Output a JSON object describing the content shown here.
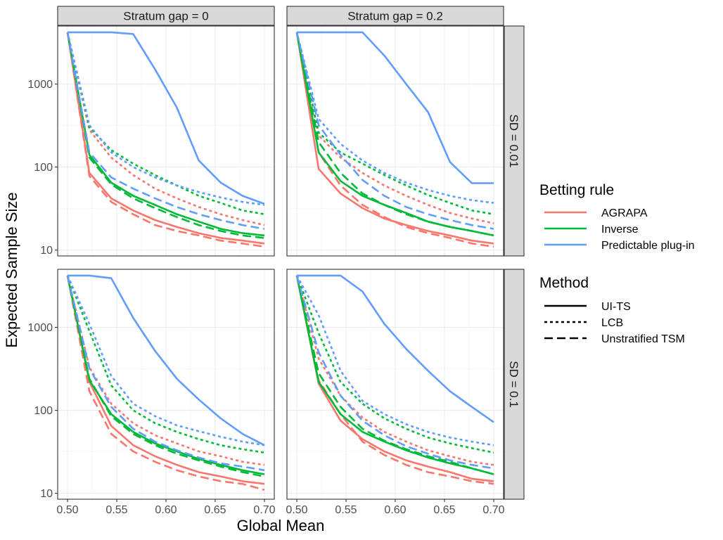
{
  "chart_data": {
    "type": "line",
    "xlabel": "Global Mean",
    "ylabel": "Expected Sample Size",
    "y_scale": "log10",
    "xlim": [
      0.49,
      0.71
    ],
    "ylim": [
      8.5,
      5000
    ],
    "x_ticks": [
      0.5,
      0.55,
      0.6,
      0.65,
      0.7
    ],
    "x_tick_labels": [
      "0.50",
      "0.55",
      "0.60",
      "0.65",
      "0.70"
    ],
    "y_ticks": [
      10,
      100,
      1000
    ],
    "y_tick_labels": [
      "10",
      "100",
      "1000"
    ],
    "col_facet_labels": [
      "Stratum gap = 0",
      "Stratum gap = 0.2"
    ],
    "row_facet_labels": [
      "SD = 0.01",
      "SD = 0.1"
    ],
    "legend": {
      "color_title": "Betting rule",
      "color_entries": [
        {
          "label": "AGRAPA",
          "color": "#F8766D"
        },
        {
          "label": "Inverse",
          "color": "#00BA38"
        },
        {
          "label": "Predictable plug-in",
          "color": "#619CFF"
        }
      ],
      "linetype_title": "Method",
      "linetype_entries": [
        {
          "label": "UI-TS",
          "dash": "solid"
        },
        {
          "label": "LCB",
          "dash": "dotted"
        },
        {
          "label": "Unstratified TSM",
          "dash": "dashed"
        }
      ]
    },
    "x": [
      0.5,
      0.5222,
      0.5444,
      0.5667,
      0.5889,
      0.6111,
      0.6333,
      0.6556,
      0.6778,
      0.7
    ],
    "panels": [
      {
        "row": 0,
        "col": 0,
        "series": [
          {
            "rule": "AGRAPA",
            "method": "UI-TS",
            "values": [
              4200,
              85,
              42,
              30,
              23,
              19,
              16,
              14,
              13,
              12
            ]
          },
          {
            "rule": "AGRAPA",
            "method": "LCB",
            "values": [
              4200,
              280,
              130,
              80,
              55,
              42,
              33,
              27,
              23,
              20
            ]
          },
          {
            "rule": "AGRAPA",
            "method": "Unstratified TSM",
            "values": [
              4200,
              78,
              38,
              27,
              20,
              17,
              15,
              13,
              12,
              11
            ]
          },
          {
            "rule": "Inverse",
            "method": "UI-TS",
            "values": [
              4200,
              140,
              65,
              45,
              35,
              27,
              22,
              18,
              16,
              15
            ]
          },
          {
            "rule": "Inverse",
            "method": "LCB",
            "values": [
              4200,
              300,
              160,
              110,
              80,
              60,
              45,
              37,
              30,
              27
            ]
          },
          {
            "rule": "Inverse",
            "method": "Unstratified TSM",
            "values": [
              4200,
              130,
              62,
              42,
              32,
              25,
              20,
              17,
              15,
              14
            ]
          },
          {
            "rule": "Predictable plug-in",
            "method": "UI-TS",
            "values": [
              4200,
              4200,
              4200,
              4000,
              1500,
              520,
              120,
              65,
              45,
              36
            ]
          },
          {
            "rule": "Predictable plug-in",
            "method": "LCB",
            "values": [
              4200,
              320,
              150,
              100,
              75,
              60,
              50,
              43,
              38,
              35
            ]
          },
          {
            "rule": "Predictable plug-in",
            "method": "Unstratified TSM",
            "values": [
              4200,
              150,
              75,
              55,
              42,
              33,
              27,
              23,
              20,
              18
            ]
          }
        ]
      },
      {
        "row": 0,
        "col": 1,
        "series": [
          {
            "rule": "AGRAPA",
            "method": "UI-TS",
            "values": [
              4200,
              95,
              48,
              32,
              24,
              20,
              17,
              15,
              13,
              12
            ]
          },
          {
            "rule": "AGRAPA",
            "method": "LCB",
            "values": [
              4200,
              240,
              130,
              85,
              60,
              45,
              35,
              28,
              24,
              21
            ]
          },
          {
            "rule": "AGRAPA",
            "method": "Unstratified TSM",
            "values": [
              4200,
              150,
              60,
              35,
              25,
              19,
              16,
              14,
              12,
              11
            ]
          },
          {
            "rule": "Inverse",
            "method": "UI-TS",
            "values": [
              4200,
              150,
              68,
              45,
              35,
              28,
              22,
              19,
              17,
              15
            ]
          },
          {
            "rule": "Inverse",
            "method": "LCB",
            "values": [
              4200,
              260,
              150,
              110,
              80,
              60,
              46,
              37,
              30,
              27
            ]
          },
          {
            "rule": "Inverse",
            "method": "Unstratified TSM",
            "values": [
              4200,
              200,
              85,
              48,
              35,
              27,
              22,
              19,
              17,
              15
            ]
          },
          {
            "rule": "Predictable plug-in",
            "method": "UI-TS",
            "values": [
              4200,
              4200,
              4200,
              4200,
              2200,
              1000,
              460,
              115,
              64,
              64
            ]
          },
          {
            "rule": "Predictable plug-in",
            "method": "LCB",
            "values": [
              4200,
              380,
              190,
              120,
              85,
              65,
              53,
              45,
              40,
              37
            ]
          },
          {
            "rule": "Predictable plug-in",
            "method": "Unstratified TSM",
            "values": [
              4200,
              320,
              140,
              70,
              45,
              33,
              27,
              23,
              20,
              18
            ]
          }
        ]
      },
      {
        "row": 1,
        "col": 0,
        "series": [
          {
            "rule": "AGRAPA",
            "method": "UI-TS",
            "values": [
              4200,
              220,
              65,
              38,
              28,
              22,
              18,
              16,
              14,
              13
            ]
          },
          {
            "rule": "AGRAPA",
            "method": "LCB",
            "values": [
              4200,
              330,
              120,
              70,
              50,
              40,
              32,
              28,
              24,
              22
            ]
          },
          {
            "rule": "AGRAPA",
            "method": "Unstratified TSM",
            "values": [
              4200,
              170,
              52,
              32,
              24,
              19,
              16,
              14,
              13,
              11
            ]
          },
          {
            "rule": "Inverse",
            "method": "UI-TS",
            "values": [
              4200,
              230,
              90,
              55,
              40,
              32,
              26,
              22,
              19,
              17
            ]
          },
          {
            "rule": "Inverse",
            "method": "LCB",
            "values": [
              4200,
              900,
              200,
              100,
              70,
              55,
              45,
              38,
              34,
              31
            ]
          },
          {
            "rule": "Inverse",
            "method": "Unstratified TSM",
            "values": [
              4200,
              240,
              85,
              52,
              38,
              30,
              25,
              21,
              18,
              16
            ]
          },
          {
            "rule": "Predictable plug-in",
            "method": "UI-TS",
            "values": [
              4200,
              4200,
              3900,
              1300,
              520,
              240,
              135,
              80,
              52,
              38
            ]
          },
          {
            "rule": "Predictable plug-in",
            "method": "LCB",
            "values": [
              4200,
              1100,
              260,
              120,
              85,
              66,
              56,
              48,
              42,
              38
            ]
          },
          {
            "rule": "Predictable plug-in",
            "method": "Unstratified TSM",
            "values": [
              4200,
              320,
              110,
              60,
              42,
              33,
              27,
              23,
              21,
              19
            ]
          }
        ]
      },
      {
        "row": 1,
        "col": 1,
        "series": [
          {
            "rule": "AGRAPA",
            "method": "UI-TS",
            "values": [
              4200,
              210,
              75,
              45,
              32,
              25,
              21,
              18,
              15,
              14
            ]
          },
          {
            "rule": "AGRAPA",
            "method": "LCB",
            "values": [
              4200,
              420,
              150,
              82,
              55,
              42,
              33,
              28,
              24,
              22
            ]
          },
          {
            "rule": "AGRAPA",
            "method": "Unstratified TSM",
            "values": [
              4200,
              230,
              90,
              42,
              29,
              22,
              18,
              16,
              14,
              13
            ]
          },
          {
            "rule": "Inverse",
            "method": "UI-TS",
            "values": [
              4200,
              220,
              90,
              55,
              42,
              33,
              27,
              23,
              20,
              17
            ]
          },
          {
            "rule": "Inverse",
            "method": "LCB",
            "values": [
              4200,
              850,
              220,
              120,
              80,
              60,
              47,
              40,
              35,
              31
            ]
          },
          {
            "rule": "Inverse",
            "method": "Unstratified TSM",
            "values": [
              4200,
              280,
              110,
              60,
              43,
              34,
              28,
              24,
              20,
              17
            ]
          },
          {
            "rule": "Predictable plug-in",
            "method": "UI-TS",
            "values": [
              4200,
              4200,
              4200,
              2700,
              1100,
              550,
              300,
              170,
              110,
              72
            ]
          },
          {
            "rule": "Predictable plug-in",
            "method": "LCB",
            "values": [
              4200,
              1400,
              300,
              130,
              90,
              68,
              55,
              47,
              42,
              38
            ]
          },
          {
            "rule": "Predictable plug-in",
            "method": "Unstratified TSM",
            "values": [
              4200,
              500,
              150,
              75,
              50,
              37,
              30,
              25,
              22,
              20
            ]
          }
        ]
      }
    ]
  }
}
